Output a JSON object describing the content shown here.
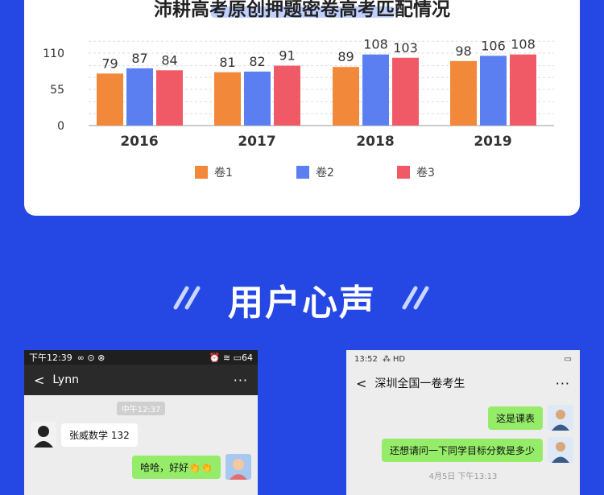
{
  "card": {
    "title": "沛耕高考原创押题密卷高考匹配情况"
  },
  "chart_data": {
    "type": "bar",
    "categories": [
      "2016",
      "2017",
      "2018",
      "2019"
    ],
    "series": [
      {
        "name": "卷1",
        "values": [
          79,
          81,
          89,
          98
        ],
        "color": "#f1883a"
      },
      {
        "name": "卷2",
        "values": [
          87,
          82,
          108,
          106
        ],
        "color": "#5b7ff0"
      },
      {
        "name": "卷3",
        "values": [
          84,
          91,
          103,
          108
        ],
        "color": "#f05a66"
      }
    ],
    "y_ticks": [
      "0",
      "55",
      "110"
    ],
    "ylim": [
      0,
      140
    ],
    "grid": true,
    "legend_position": "bottom"
  },
  "section": {
    "title": "用户心声"
  },
  "left_phone": {
    "status_time": "下午12:39",
    "status_battery": "64",
    "contact": "Lynn",
    "more": "···",
    "timestamp": "中午12:37",
    "msg_in": "张威数学 132",
    "msg_out": "哈哈，好好👏👏"
  },
  "right_phone": {
    "status_time": "13:52",
    "status_net": "HD",
    "contact": "深圳全国一卷考生",
    "more": "···",
    "msg_out_1": "这是课表",
    "msg_out_2": "还想请问一下同学目标分数是多少",
    "timestamp": "4月5日 下午13:13"
  }
}
